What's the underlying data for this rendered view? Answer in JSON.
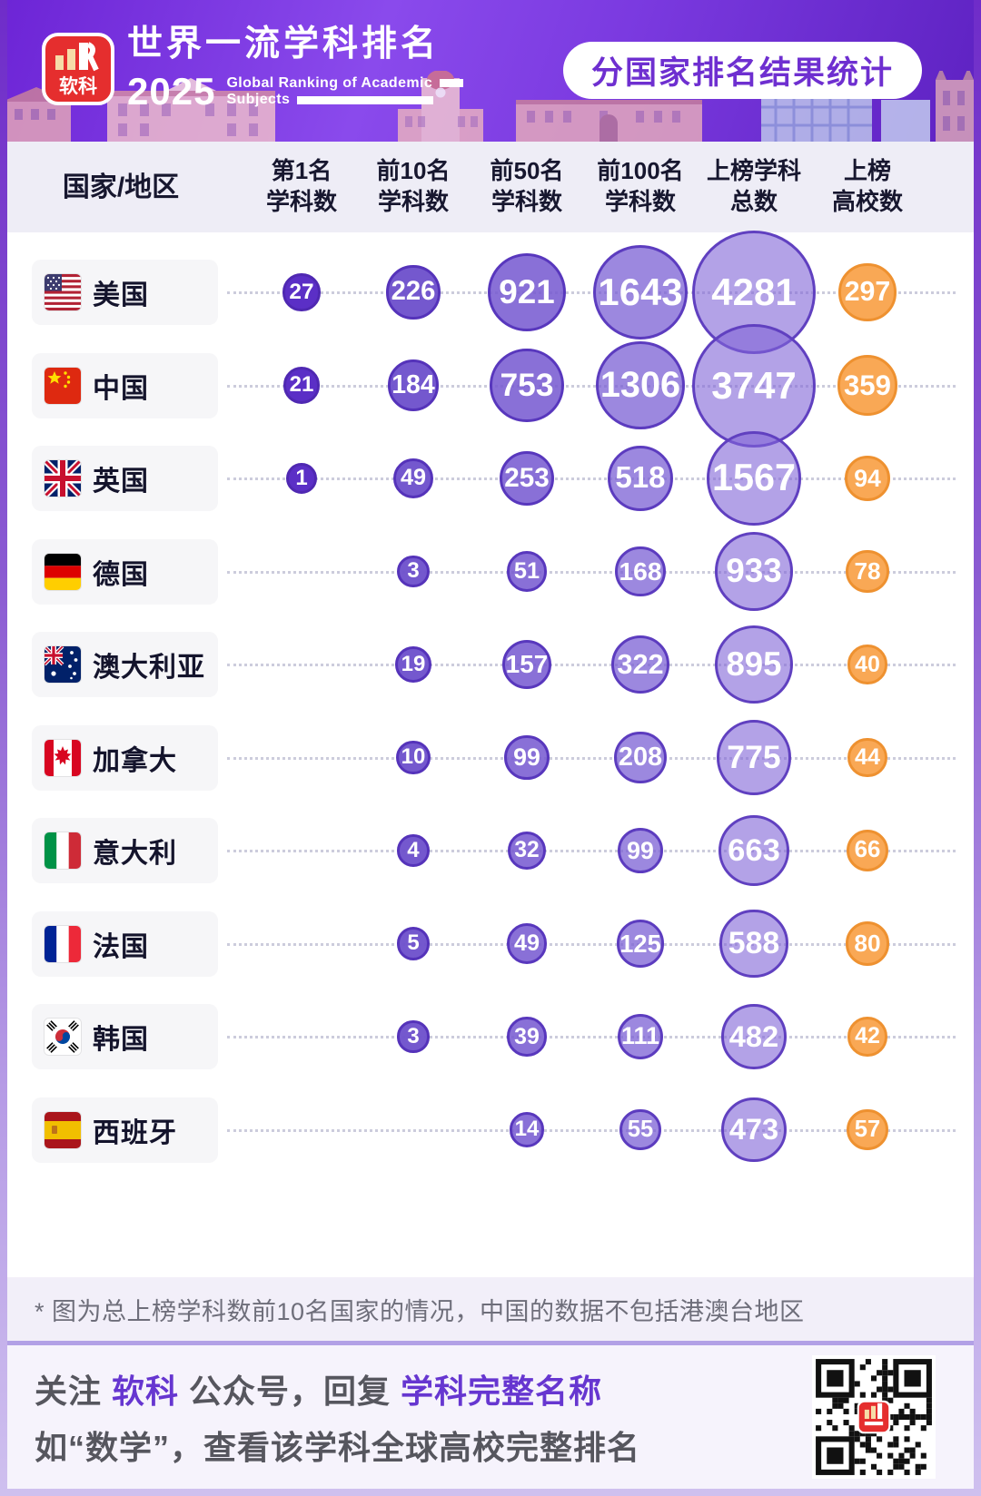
{
  "header": {
    "brand_name": "软科",
    "title": "世界一流学科排名",
    "year": "2025",
    "subtitle_line1": "Global Ranking of Academic",
    "subtitle_line2": "Subjects",
    "badge": "分国家排名结果统计"
  },
  "table": {
    "columns": [
      {
        "line1": "国家/地区",
        "line2": ""
      },
      {
        "line1": "第1名",
        "line2": "学科数"
      },
      {
        "line1": "前10名",
        "line2": "学科数"
      },
      {
        "line1": "前50名",
        "line2": "学科数"
      },
      {
        "line1": "前100名",
        "line2": "学科数"
      },
      {
        "line1": "上榜学科",
        "line2": "总数"
      },
      {
        "line1": "上榜",
        "line2": "高校数"
      }
    ]
  },
  "chart_data": {
    "type": "bubble",
    "title": "分国家排名结果统计",
    "columns": [
      "第1名学科数",
      "前10名学科数",
      "前50名学科数",
      "前100名学科数",
      "上榜学科总数",
      "上榜高校数"
    ],
    "rows": [
      {
        "country": "美国",
        "flag": "us",
        "values": [
          27,
          226,
          921,
          1643,
          4281,
          297
        ]
      },
      {
        "country": "中国",
        "flag": "cn",
        "values": [
          21,
          184,
          753,
          1306,
          3747,
          359
        ]
      },
      {
        "country": "英国",
        "flag": "gb",
        "values": [
          1,
          49,
          253,
          518,
          1567,
          94
        ]
      },
      {
        "country": "德国",
        "flag": "de",
        "values": [
          null,
          3,
          51,
          168,
          933,
          78
        ]
      },
      {
        "country": "澳大利亚",
        "flag": "au",
        "values": [
          null,
          19,
          157,
          322,
          895,
          40
        ]
      },
      {
        "country": "加拿大",
        "flag": "ca",
        "values": [
          null,
          10,
          99,
          208,
          775,
          44
        ]
      },
      {
        "country": "意大利",
        "flag": "it",
        "values": [
          null,
          4,
          32,
          99,
          663,
          66
        ]
      },
      {
        "country": "法国",
        "flag": "fr",
        "values": [
          null,
          5,
          49,
          125,
          588,
          80
        ]
      },
      {
        "country": "韩国",
        "flag": "kr",
        "values": [
          null,
          3,
          39,
          111,
          482,
          42
        ]
      },
      {
        "country": "西班牙",
        "flag": "es",
        "values": [
          null,
          null,
          14,
          55,
          473,
          57
        ]
      }
    ],
    "colors": {
      "rank1": "#5b2fc6",
      "top10": "#7a5ed1",
      "top50": "#8670d5",
      "top100": "#987fdb",
      "total_subjects": "#af9ee4",
      "universities": "#f9a855",
      "universities_border": "#ee9130",
      "purple_border": "#5b3ac0"
    },
    "legend_position": "none",
    "grid": false
  },
  "footnote": {
    "text": "* 图为总上榜学科数前10名国家的情况，中国的数据不包括港澳台地区"
  },
  "footer": {
    "line1_parts": [
      {
        "text": "关注 ",
        "style": "grey"
      },
      {
        "text": "软科",
        "style": "purple"
      },
      {
        "text": " 公众号，回复 ",
        "style": "grey"
      },
      {
        "text": "学科完整名称",
        "style": "purple"
      }
    ],
    "line2": "如“数学”，查看该学科全球高校完整排名"
  }
}
